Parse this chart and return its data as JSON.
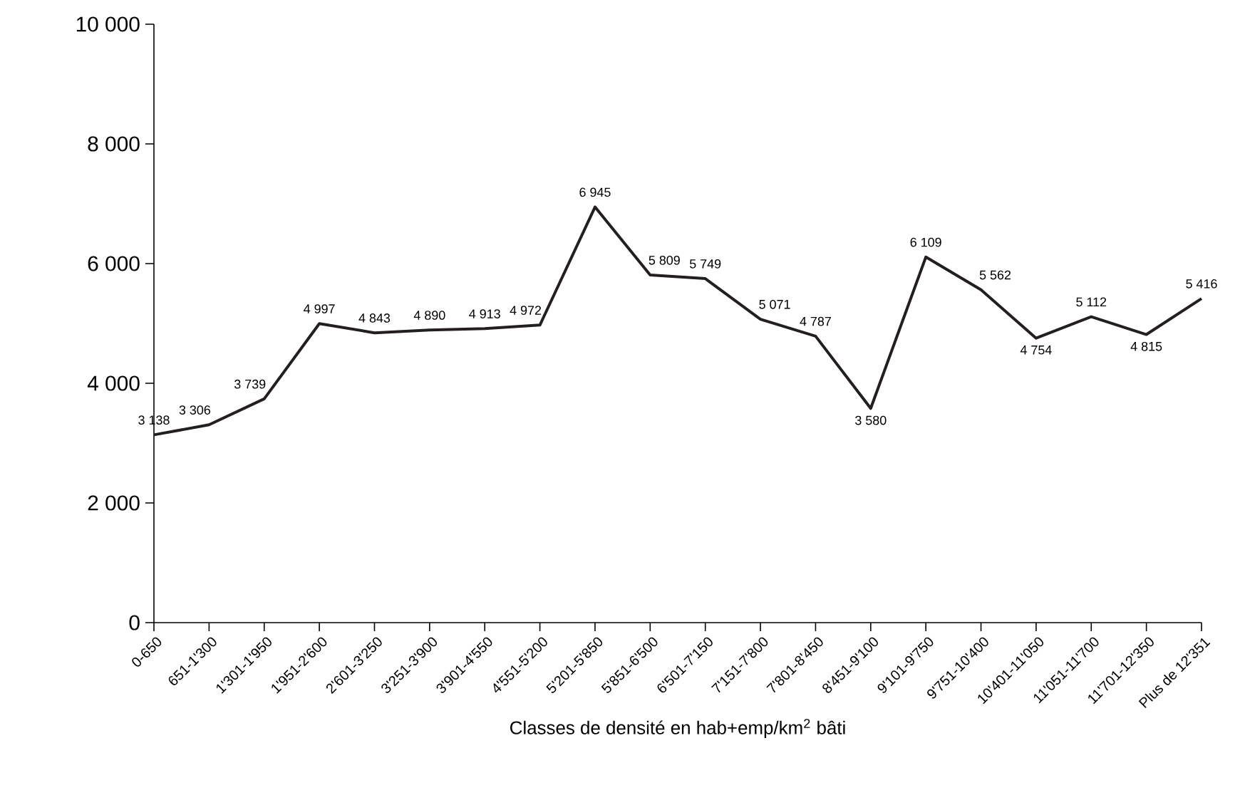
{
  "chart_data": {
    "type": "line",
    "xlabel": "Classes de densité en hab+emp/km$^{2}$ bâti",
    "categories": [
      "0-650",
      "651-1'300",
      "1'301-1'950",
      "1'951-2'600",
      "2'601-3'250",
      "3'251-3'900",
      "3'901-4'550",
      "4'551-5'200",
      "5'201-5'850",
      "5'851-6'500",
      "6'501-7'150",
      "7'151-7'800",
      "7'801-8'450",
      "8'451-9'100",
      "9'101-9'750",
      "9'751-10'400",
      "10'401-11'050",
      "11'051-11'700",
      "11'701-12'350",
      "Plus de 12'351"
    ],
    "values": [
      3138,
      3306,
      3739,
      4997,
      4843,
      4890,
      4913,
      4972,
      6945,
      5809,
      5749,
      5071,
      4787,
      3580,
      6109,
      5562,
      4754,
      5112,
      4815,
      5416
    ],
    "color": "#231f20",
    "ylim": [
      0,
      10000
    ],
    "yticks": [
      0,
      {
        "value": 2000,
        "label": "2 000"
      },
      {
        "value": 4000,
        "label": "4 000"
      },
      {
        "value": 6000,
        "label": "6 000"
      },
      {
        "value": 8000,
        "label": "8 000"
      },
      {
        "value": 10000,
        "label": "10 000"
      }
    ],
    "data_labels": true,
    "grid": false,
    "marker": "none",
    "line_style": "solid"
  }
}
